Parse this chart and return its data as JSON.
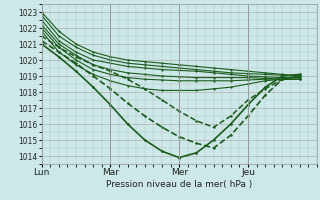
{
  "bg_color": "#cce8e8",
  "grid_color": "#b0b0b0",
  "line_color": "#1a5c1a",
  "xlabel": "Pression niveau de la mer( hPa )",
  "ylim": [
    1013.5,
    1023.5
  ],
  "yticks": [
    1014,
    1015,
    1016,
    1017,
    1018,
    1019,
    1020,
    1021,
    1022,
    1023
  ],
  "day_labels": [
    "Lun",
    "Mar",
    "Mer",
    "Jeu"
  ],
  "day_positions": [
    0,
    48,
    96,
    144
  ],
  "xlim": [
    0,
    192
  ],
  "lines": [
    {
      "points": [
        [
          0,
          1023.0
        ],
        [
          12,
          1021.8
        ],
        [
          24,
          1021.0
        ],
        [
          36,
          1020.5
        ],
        [
          48,
          1020.2
        ],
        [
          60,
          1020.0
        ],
        [
          72,
          1019.9
        ],
        [
          84,
          1019.8
        ],
        [
          96,
          1019.7
        ],
        [
          108,
          1019.6
        ],
        [
          120,
          1019.5
        ],
        [
          132,
          1019.4
        ],
        [
          144,
          1019.3
        ],
        [
          156,
          1019.2
        ],
        [
          168,
          1019.1
        ],
        [
          180,
          1019.0
        ]
      ],
      "style": "solid",
      "lw": 0.8
    },
    {
      "points": [
        [
          0,
          1022.8
        ],
        [
          12,
          1021.5
        ],
        [
          24,
          1020.8
        ],
        [
          36,
          1020.3
        ],
        [
          48,
          1020.0
        ],
        [
          60,
          1019.8
        ],
        [
          72,
          1019.7
        ],
        [
          84,
          1019.6
        ],
        [
          96,
          1019.5
        ],
        [
          108,
          1019.4
        ],
        [
          120,
          1019.3
        ],
        [
          132,
          1019.2
        ],
        [
          144,
          1019.15
        ],
        [
          156,
          1019.1
        ],
        [
          168,
          1019.05
        ],
        [
          180,
          1019.0
        ]
      ],
      "style": "solid",
      "lw": 0.8
    },
    {
      "points": [
        [
          0,
          1022.5
        ],
        [
          12,
          1021.2
        ],
        [
          24,
          1020.5
        ],
        [
          36,
          1020.0
        ],
        [
          48,
          1019.8
        ],
        [
          60,
          1019.6
        ],
        [
          72,
          1019.5
        ],
        [
          84,
          1019.4
        ],
        [
          96,
          1019.35
        ],
        [
          108,
          1019.3
        ],
        [
          120,
          1019.2
        ],
        [
          132,
          1019.1
        ],
        [
          144,
          1019.0
        ],
        [
          156,
          1018.95
        ],
        [
          168,
          1018.9
        ],
        [
          180,
          1018.9
        ]
      ],
      "style": "solid",
      "lw": 0.8
    },
    {
      "points": [
        [
          0,
          1022.2
        ],
        [
          12,
          1021.0
        ],
        [
          24,
          1020.3
        ],
        [
          36,
          1019.7
        ],
        [
          48,
          1019.4
        ],
        [
          60,
          1019.2
        ],
        [
          72,
          1019.1
        ],
        [
          84,
          1019.0
        ],
        [
          96,
          1018.95
        ],
        [
          108,
          1018.9
        ],
        [
          120,
          1018.9
        ],
        [
          132,
          1018.9
        ],
        [
          144,
          1018.9
        ],
        [
          156,
          1018.85
        ],
        [
          168,
          1018.8
        ],
        [
          180,
          1018.8
        ]
      ],
      "style": "solid",
      "lw": 0.8
    },
    {
      "points": [
        [
          0,
          1022.0
        ],
        [
          12,
          1020.8
        ],
        [
          24,
          1020.0
        ],
        [
          36,
          1019.4
        ],
        [
          48,
          1019.1
        ],
        [
          60,
          1018.9
        ],
        [
          72,
          1018.8
        ],
        [
          84,
          1018.75
        ],
        [
          96,
          1018.7
        ],
        [
          108,
          1018.7
        ],
        [
          120,
          1018.7
        ],
        [
          132,
          1018.7
        ],
        [
          144,
          1018.75
        ],
        [
          156,
          1018.8
        ],
        [
          168,
          1018.8
        ],
        [
          180,
          1018.8
        ]
      ],
      "style": "solid",
      "lw": 0.8
    },
    {
      "points": [
        [
          0,
          1021.8
        ],
        [
          12,
          1020.5
        ],
        [
          24,
          1019.7
        ],
        [
          36,
          1019.1
        ],
        [
          48,
          1018.7
        ],
        [
          60,
          1018.4
        ],
        [
          72,
          1018.2
        ],
        [
          84,
          1018.1
        ],
        [
          96,
          1018.1
        ],
        [
          108,
          1018.1
        ],
        [
          120,
          1018.2
        ],
        [
          132,
          1018.3
        ],
        [
          144,
          1018.5
        ],
        [
          156,
          1018.7
        ],
        [
          168,
          1018.8
        ],
        [
          180,
          1018.8
        ]
      ],
      "style": "solid",
      "lw": 0.8
    },
    {
      "points": [
        [
          0,
          1021.5
        ],
        [
          12,
          1020.8
        ],
        [
          24,
          1020.2
        ],
        [
          36,
          1019.7
        ],
        [
          48,
          1019.3
        ],
        [
          60,
          1018.8
        ],
        [
          72,
          1018.2
        ],
        [
          84,
          1017.5
        ],
        [
          96,
          1016.8
        ],
        [
          108,
          1016.2
        ],
        [
          120,
          1015.8
        ],
        [
          132,
          1016.5
        ],
        [
          144,
          1017.5
        ],
        [
          156,
          1018.2
        ],
        [
          168,
          1018.8
        ],
        [
          180,
          1019.0
        ]
      ],
      "style": "dotted",
      "lw": 1.1
    },
    {
      "points": [
        [
          0,
          1021.2
        ],
        [
          12,
          1020.5
        ],
        [
          24,
          1019.8
        ],
        [
          36,
          1019.0
        ],
        [
          48,
          1018.2
        ],
        [
          60,
          1017.3
        ],
        [
          72,
          1016.5
        ],
        [
          84,
          1015.8
        ],
        [
          96,
          1015.2
        ],
        [
          108,
          1014.8
        ],
        [
          120,
          1014.5
        ],
        [
          132,
          1015.3
        ],
        [
          144,
          1016.5
        ],
        [
          156,
          1017.8
        ],
        [
          168,
          1018.8
        ],
        [
          180,
          1019.0
        ]
      ],
      "style": "dotted",
      "lw": 1.2
    },
    {
      "points": [
        [
          0,
          1021.0
        ],
        [
          12,
          1020.2
        ],
        [
          24,
          1019.3
        ],
        [
          36,
          1018.3
        ],
        [
          48,
          1017.2
        ],
        [
          60,
          1016.0
        ],
        [
          72,
          1015.0
        ],
        [
          84,
          1014.3
        ],
        [
          96,
          1013.9
        ],
        [
          108,
          1014.2
        ],
        [
          120,
          1015.0
        ],
        [
          132,
          1016.0
        ],
        [
          144,
          1017.2
        ],
        [
          156,
          1018.3
        ],
        [
          168,
          1019.0
        ],
        [
          180,
          1019.1
        ]
      ],
      "style": "solid_marker",
      "lw": 1.2
    }
  ]
}
